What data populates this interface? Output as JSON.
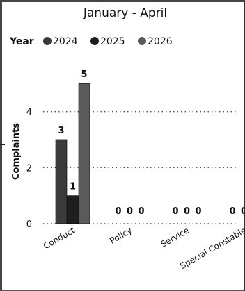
{
  "chart_data": {
    "type": "bar",
    "title": "January - April",
    "legend_title": "Year",
    "legend_position": "top-left",
    "ylabel": "Complaints",
    "xlabel": "",
    "ylim": [
      0,
      5.6
    ],
    "yticks": [
      0,
      2,
      4
    ],
    "grid": true,
    "categories": [
      "Conduct",
      "Policy",
      "Service",
      "Special Constable"
    ],
    "series": [
      {
        "name": "2024",
        "values": [
          3,
          0,
          0,
          0
        ],
        "color": "#3a3a3a"
      },
      {
        "name": "2025",
        "values": [
          1,
          0,
          0,
          0
        ],
        "color": "#1e1e1e"
      },
      {
        "name": "2026",
        "values": [
          5,
          0,
          0,
          0
        ],
        "color": "#5a5a5a"
      }
    ]
  }
}
